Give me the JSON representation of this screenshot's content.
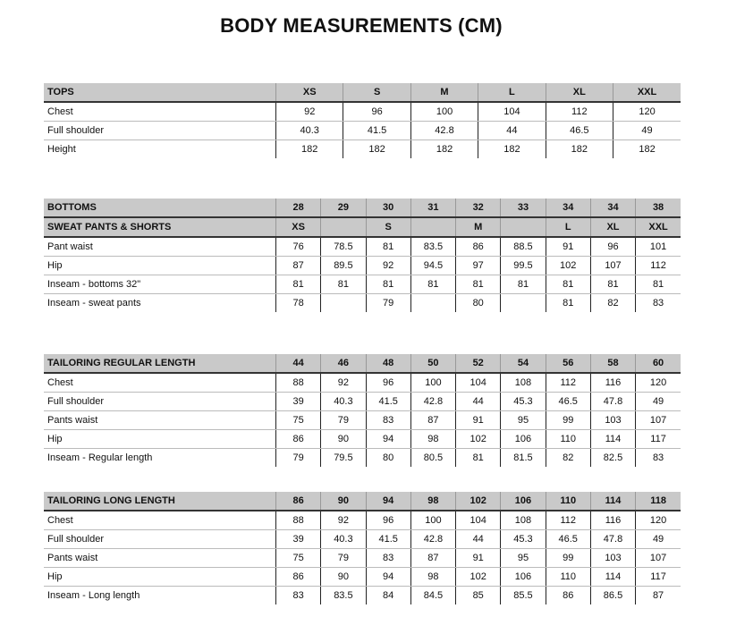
{
  "title": "BODY MEASUREMENTS (CM)",
  "tables": [
    {
      "id": "t-tops",
      "header_rows": [
        [
          "TOPS",
          "XS",
          "S",
          "M",
          "L",
          "XL",
          "XXL"
        ]
      ],
      "rows": [
        [
          "Chest",
          "92",
          "96",
          "100",
          "104",
          "112",
          "120"
        ],
        [
          "Full shoulder",
          "40.3",
          "41.5",
          "42.8",
          "44",
          "46.5",
          "49"
        ],
        [
          "Height",
          "182",
          "182",
          "182",
          "182",
          "182",
          "182"
        ]
      ]
    },
    {
      "id": "t-bottoms",
      "header_rows": [
        [
          "BOTTOMS",
          "28",
          "29",
          "30",
          "31",
          "32",
          "33",
          "34",
          "34",
          "38"
        ],
        [
          "SWEAT PANTS & SHORTS",
          "XS",
          "",
          "S",
          "",
          "M",
          "",
          "L",
          "XL",
          "XXL"
        ]
      ],
      "rows": [
        [
          "Pant waist",
          "76",
          "78.5",
          "81",
          "83.5",
          "86",
          "88.5",
          "91",
          "96",
          "101"
        ],
        [
          "Hip",
          "87",
          "89.5",
          "92",
          "94.5",
          "97",
          "99.5",
          "102",
          "107",
          "112"
        ],
        [
          "Inseam - bottoms 32\"",
          "81",
          "81",
          "81",
          "81",
          "81",
          "81",
          "81",
          "81",
          "81"
        ],
        [
          "Inseam - sweat pants",
          "78",
          "",
          "79",
          "",
          "80",
          "",
          "81",
          "82",
          "83"
        ]
      ]
    },
    {
      "id": "t-reg",
      "header_rows": [
        [
          "TAILORING REGULAR LENGTH",
          "44",
          "46",
          "48",
          "50",
          "52",
          "54",
          "56",
          "58",
          "60"
        ]
      ],
      "rows": [
        [
          "Chest",
          "88",
          "92",
          "96",
          "100",
          "104",
          "108",
          "112",
          "116",
          "120"
        ],
        [
          "Full shoulder",
          "39",
          "40.3",
          "41.5",
          "42.8",
          "44",
          "45.3",
          "46.5",
          "47.8",
          "49"
        ],
        [
          "Pants waist",
          "75",
          "79",
          "83",
          "87",
          "91",
          "95",
          "99",
          "103",
          "107"
        ],
        [
          "Hip",
          "86",
          "90",
          "94",
          "98",
          "102",
          "106",
          "110",
          "114",
          "117"
        ],
        [
          "Inseam - Regular length",
          "79",
          "79.5",
          "80",
          "80.5",
          "81",
          "81.5",
          "82",
          "82.5",
          "83"
        ]
      ]
    },
    {
      "id": "t-long",
      "header_rows": [
        [
          "TAILORING LONG LENGTH",
          "86",
          "90",
          "94",
          "98",
          "102",
          "106",
          "110",
          "114",
          "118"
        ]
      ],
      "rows": [
        [
          "Chest",
          "88",
          "92",
          "96",
          "100",
          "104",
          "108",
          "112",
          "116",
          "120"
        ],
        [
          "Full shoulder",
          "39",
          "40.3",
          "41.5",
          "42.8",
          "44",
          "45.3",
          "46.5",
          "47.8",
          "49"
        ],
        [
          "Pants waist",
          "75",
          "79",
          "83",
          "87",
          "91",
          "95",
          "99",
          "103",
          "107"
        ],
        [
          "Hip",
          "86",
          "90",
          "94",
          "98",
          "102",
          "106",
          "110",
          "114",
          "117"
        ],
        [
          "Inseam - Long length",
          "83",
          "83.5",
          "84",
          "84.5",
          "85",
          "85.5",
          "86",
          "86.5",
          "87"
        ]
      ]
    }
  ]
}
